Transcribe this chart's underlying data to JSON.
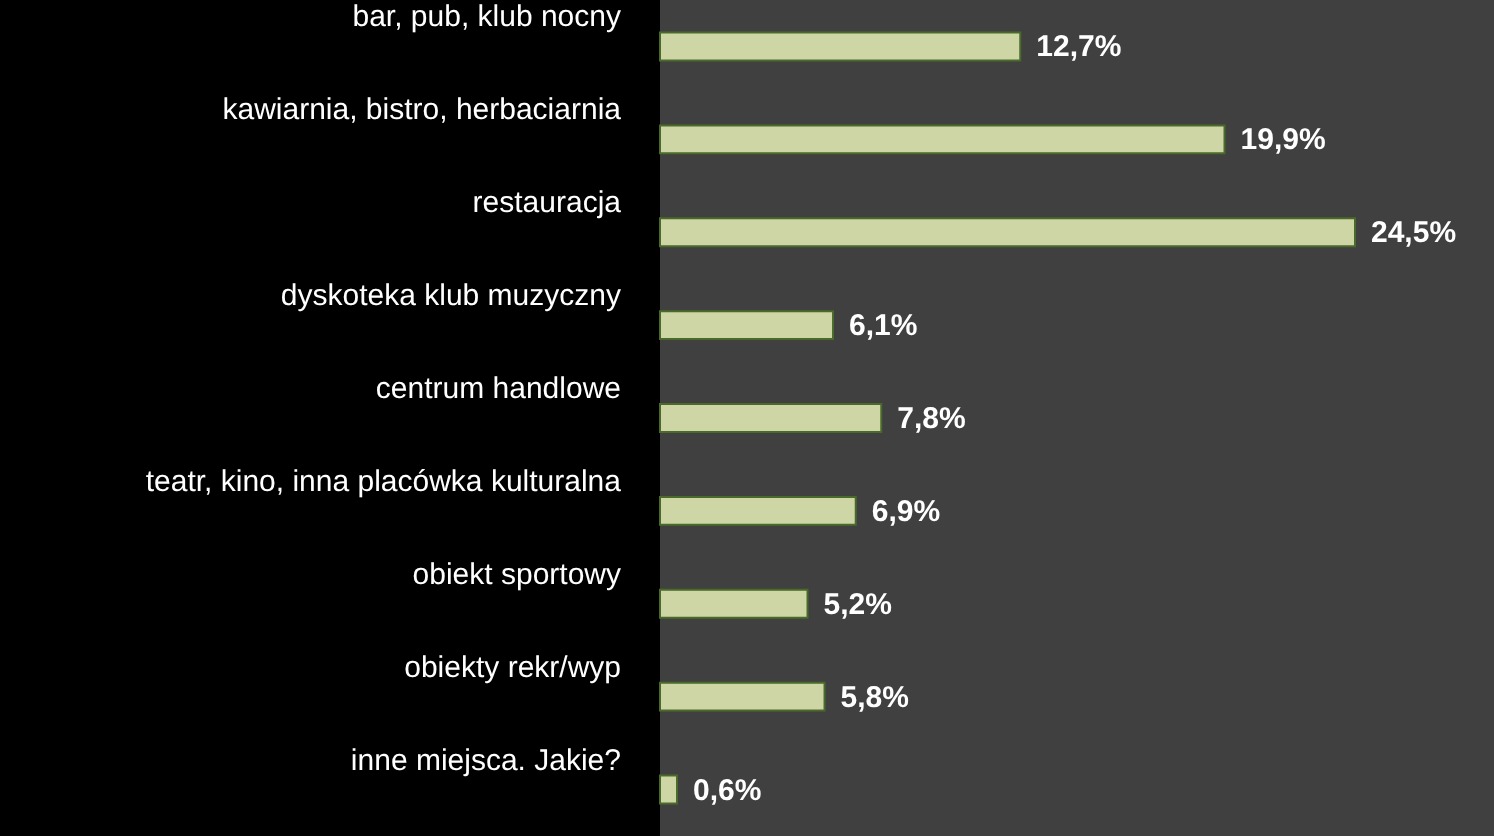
{
  "chart_data": {
    "type": "bar",
    "orientation": "horizontal",
    "categories": [
      "bar, pub, klub nocny",
      "kawiarnia, bistro, herbaciarnia",
      "restauracja",
      "dyskoteka klub muzyczny",
      "centrum handlowe",
      "teatr, kino, inna placówka kulturalna",
      "obiekt sportowy",
      "obiekty rekr/wyp",
      "inne miejsca. Jakie?"
    ],
    "values": [
      12.7,
      19.9,
      24.5,
      6.1,
      7.8,
      6.9,
      5.2,
      5.8,
      0.6
    ],
    "value_labels": [
      "12,7%",
      "19,9%",
      "24,5%",
      "6,1%",
      "7,8%",
      "6,9%",
      "5,2%",
      "5,8%",
      "0,6%"
    ],
    "color": "#cfd6a6",
    "xlim": [
      0,
      29.4
    ]
  }
}
